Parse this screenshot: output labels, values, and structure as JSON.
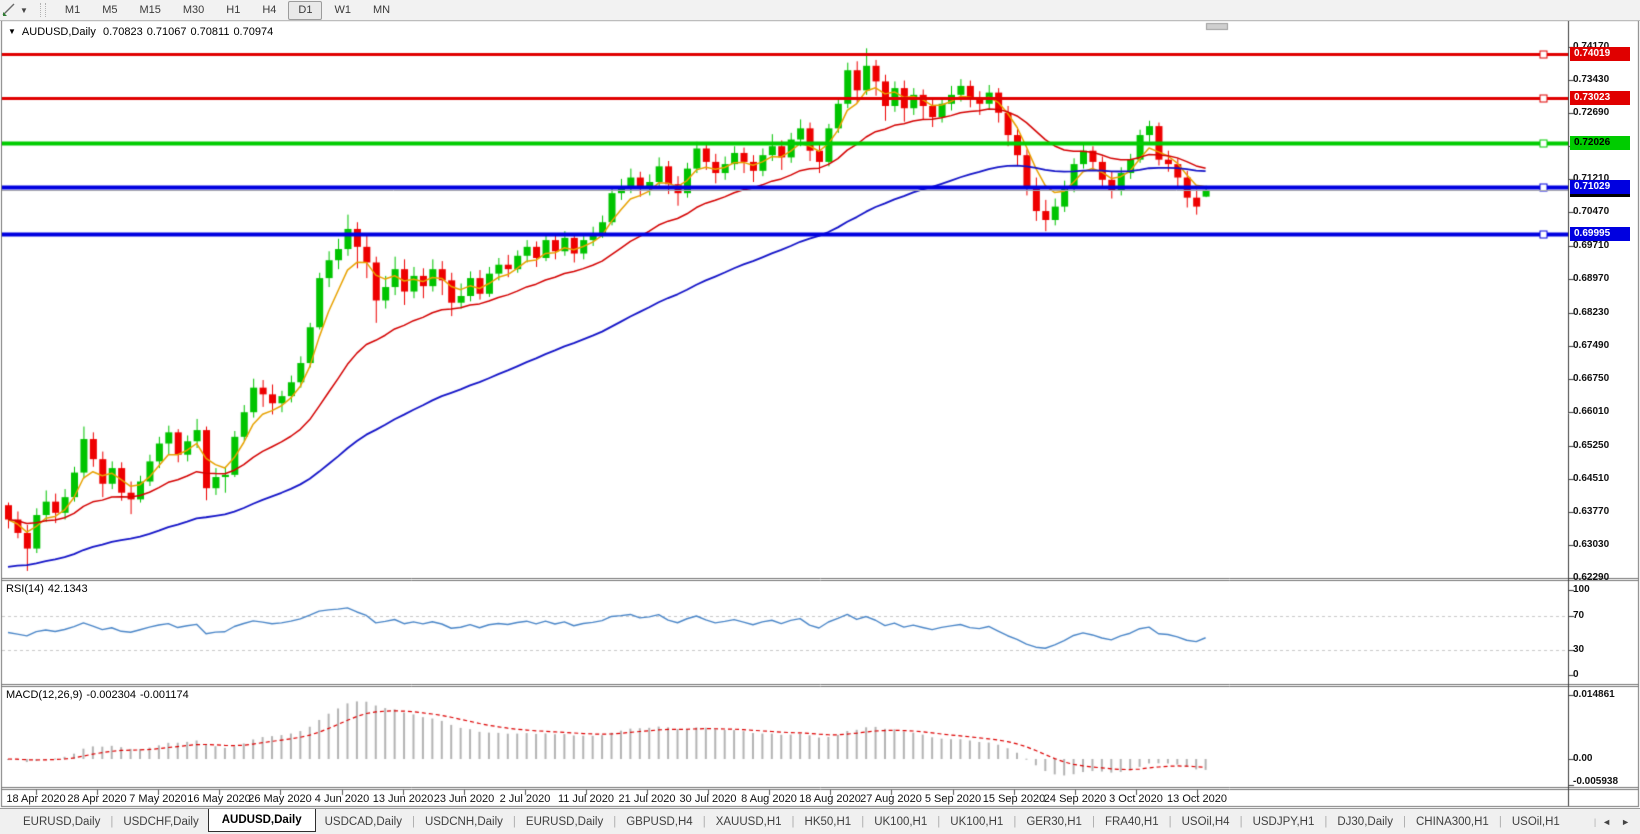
{
  "icons": {
    "title_caret": "▼",
    "dropdown_caret": "▼",
    "scroll_left": "◄",
    "scroll_right": "►"
  },
  "toolbar": {
    "timeframes": [
      "M1",
      "M5",
      "M15",
      "M30",
      "H1",
      "H4",
      "D1",
      "W1",
      "MN"
    ],
    "active": "D1"
  },
  "chart": {
    "symbol_period": "AUDUSD,Daily",
    "open": "0.70823",
    "high": "0.71067",
    "low": "0.70811",
    "close": "0.70974"
  },
  "chart_data": {
    "type": "candlestick",
    "symbol": "AUDUSD",
    "timeframe": "Daily",
    "up_color": "#00c400",
    "down_color": "#ee0000",
    "ohlc_current": {
      "open": 0.70823,
      "high": 0.71067,
      "low": 0.70811,
      "close": 0.70974
    },
    "price_axis": {
      "tick_labels": [
        "0.74170",
        "0.73430",
        "0.72690",
        "0.71950",
        "0.71210",
        "0.70470",
        "0.69710",
        "0.68970",
        "0.68230",
        "0.67490",
        "0.66750",
        "0.66010",
        "0.65250",
        "0.64510",
        "0.63770",
        "0.63030",
        "0.62290"
      ]
    },
    "x_labels": [
      "18 Apr 2020",
      "28 Apr 2020",
      "7 May 2020",
      "16 May 2020",
      "26 May 2020",
      "4 Jun 2020",
      "13 Jun 2020",
      "23 Jun 2020",
      "2 Jul 2020",
      "11 Jul 2020",
      "21 Jul 2020",
      "30 Jul 2020",
      "8 Aug 2020",
      "18 Aug 2020",
      "27 Aug 2020",
      "5 Sep 2020",
      "15 Sep 2020",
      "24 Sep 2020",
      "3 Oct 2020",
      "13 Oct 2020"
    ],
    "levels": [
      {
        "price": 0.74019,
        "label": "0.74019",
        "color": "#e00000",
        "text_color": "#ffffff",
        "width": 3
      },
      {
        "price": 0.73023,
        "label": "0.73023",
        "color": "#e00000",
        "text_color": "#ffffff",
        "width": 3
      },
      {
        "price": 0.72026,
        "label": "0.72026",
        "color": "#00cc00",
        "text_color": "#000000",
        "width": 4
      },
      {
        "price": 0.71029,
        "label": "0.71029",
        "color": "#0000e0",
        "text_color": "#ffffff",
        "width": 4
      },
      {
        "price": 0.69995,
        "label": "0.69995",
        "color": "#0000e0",
        "text_color": "#ffffff",
        "width": 4
      }
    ],
    "bid": {
      "price": 0.70974,
      "label": "0.70974",
      "line_color": "#a8a8a8",
      "badge_color": "#000000",
      "text_color": "#ffffff"
    },
    "moving_averages": [
      {
        "name": "fast",
        "method": "ema",
        "period": 5,
        "color": "#e8a200",
        "width": 1.5
      },
      {
        "name": "medium",
        "method": "ema",
        "period": 20,
        "color": "#d40000",
        "width": 1.5
      },
      {
        "name": "slow",
        "method": "ema",
        "period": 55,
        "color": "#1414c8",
        "width": 1.8,
        "seed": 0.625
      }
    ],
    "rsi": {
      "label": "RSI(14)",
      "value": "42.1343",
      "period": 14,
      "color": "#4a86c8",
      "levels": [
        70,
        30
      ],
      "scale": [
        0,
        100
      ],
      "axis_labels": [
        "100",
        "70",
        "30",
        "0"
      ],
      "axis_values": [
        100,
        70,
        30,
        0
      ]
    },
    "macd": {
      "label": "MACD(12,26,9)",
      "macd_value": "-0.002304",
      "signal_value": "-0.001174",
      "histogram_color": "#b4b4b4",
      "signal_color": "#dd0000",
      "axis_labels": [
        "0.014861",
        "0.00",
        "-0.005938"
      ],
      "axis_values": [
        0.014861,
        0.0,
        -0.005938
      ]
    },
    "candles": [
      [
        0.6392,
        0.6398,
        0.634,
        0.636
      ],
      [
        0.636,
        0.6378,
        0.6318,
        0.633
      ],
      [
        0.633,
        0.6348,
        0.6245,
        0.6295
      ],
      [
        0.6295,
        0.6385,
        0.6285,
        0.637
      ],
      [
        0.637,
        0.6425,
        0.6355,
        0.64
      ],
      [
        0.64,
        0.6418,
        0.6352,
        0.6375
      ],
      [
        0.6375,
        0.6428,
        0.636,
        0.641
      ],
      [
        0.641,
        0.6478,
        0.64,
        0.6465
      ],
      [
        0.6465,
        0.6568,
        0.6452,
        0.654
      ],
      [
        0.654,
        0.6555,
        0.6478,
        0.6495
      ],
      [
        0.6495,
        0.6512,
        0.641,
        0.644
      ],
      [
        0.644,
        0.649,
        0.6428,
        0.6475
      ],
      [
        0.6475,
        0.6488,
        0.6402,
        0.642
      ],
      [
        0.642,
        0.6445,
        0.6372,
        0.6405
      ],
      [
        0.6405,
        0.6458,
        0.6398,
        0.6445
      ],
      [
        0.6445,
        0.6505,
        0.6435,
        0.649
      ],
      [
        0.649,
        0.6545,
        0.6475,
        0.653
      ],
      [
        0.653,
        0.657,
        0.6505,
        0.6555
      ],
      [
        0.6555,
        0.6562,
        0.6488,
        0.6505
      ],
      [
        0.6505,
        0.6548,
        0.649,
        0.6535
      ],
      [
        0.6535,
        0.6585,
        0.652,
        0.656
      ],
      [
        0.656,
        0.6568,
        0.6403,
        0.643
      ],
      [
        0.643,
        0.6475,
        0.6415,
        0.6455
      ],
      [
        0.6455,
        0.6478,
        0.642,
        0.646
      ],
      [
        0.646,
        0.6558,
        0.6455,
        0.6545
      ],
      [
        0.6545,
        0.6616,
        0.6535,
        0.66
      ],
      [
        0.66,
        0.6675,
        0.6588,
        0.6655
      ],
      [
        0.6655,
        0.6672,
        0.6612,
        0.664
      ],
      [
        0.664,
        0.6662,
        0.6595,
        0.662
      ],
      [
        0.662,
        0.6648,
        0.66,
        0.6636
      ],
      [
        0.6636,
        0.6682,
        0.6622,
        0.6667
      ],
      [
        0.6667,
        0.6725,
        0.6655,
        0.671
      ],
      [
        0.671,
        0.68,
        0.67,
        0.679
      ],
      [
        0.679,
        0.6912,
        0.6785,
        0.69
      ],
      [
        0.69,
        0.696,
        0.688,
        0.694
      ],
      [
        0.694,
        0.6988,
        0.692,
        0.6965
      ],
      [
        0.6965,
        0.7042,
        0.695,
        0.701
      ],
      [
        0.701,
        0.7025,
        0.6922,
        0.697
      ],
      [
        0.697,
        0.6998,
        0.69,
        0.6935
      ],
      [
        0.6935,
        0.6948,
        0.68,
        0.685
      ],
      [
        0.685,
        0.6905,
        0.6832,
        0.688
      ],
      [
        0.688,
        0.6948,
        0.6862,
        0.692
      ],
      [
        0.692,
        0.6942,
        0.684,
        0.687
      ],
      [
        0.687,
        0.6925,
        0.6855,
        0.6905
      ],
      [
        0.6905,
        0.6922,
        0.6855,
        0.6882
      ],
      [
        0.6882,
        0.6942,
        0.687,
        0.692
      ],
      [
        0.692,
        0.6938,
        0.6862,
        0.6895
      ],
      [
        0.6895,
        0.6912,
        0.6815,
        0.6845
      ],
      [
        0.6845,
        0.6888,
        0.6832,
        0.686
      ],
      [
        0.686,
        0.6915,
        0.6848,
        0.69
      ],
      [
        0.69,
        0.6918,
        0.6852,
        0.6865
      ],
      [
        0.6865,
        0.6925,
        0.6858,
        0.691
      ],
      [
        0.691,
        0.6945,
        0.6895,
        0.693
      ],
      [
        0.693,
        0.6952,
        0.6902,
        0.692
      ],
      [
        0.692,
        0.6962,
        0.6912,
        0.695
      ],
      [
        0.695,
        0.6985,
        0.6935,
        0.697
      ],
      [
        0.697,
        0.6982,
        0.6925,
        0.6945
      ],
      [
        0.6945,
        0.6998,
        0.6938,
        0.6985
      ],
      [
        0.6985,
        0.6995,
        0.6942,
        0.696
      ],
      [
        0.696,
        0.7005,
        0.695,
        0.699
      ],
      [
        0.699,
        0.6998,
        0.6935,
        0.6955
      ],
      [
        0.6955,
        0.6998,
        0.6942,
        0.6985
      ],
      [
        0.6985,
        0.7015,
        0.6972,
        0.7
      ],
      [
        0.7,
        0.704,
        0.699,
        0.7025
      ],
      [
        0.7025,
        0.7105,
        0.7018,
        0.709
      ],
      [
        0.709,
        0.7122,
        0.7075,
        0.7105
      ],
      [
        0.7105,
        0.7145,
        0.709,
        0.7125
      ],
      [
        0.7125,
        0.7138,
        0.7082,
        0.71
      ],
      [
        0.71,
        0.7132,
        0.7085,
        0.7115
      ],
      [
        0.7115,
        0.717,
        0.7102,
        0.715
      ],
      [
        0.715,
        0.7162,
        0.7088,
        0.711
      ],
      [
        0.711,
        0.7128,
        0.7062,
        0.709
      ],
      [
        0.709,
        0.7158,
        0.708,
        0.7145
      ],
      [
        0.7145,
        0.7205,
        0.7135,
        0.719
      ],
      [
        0.719,
        0.7202,
        0.7142,
        0.716
      ],
      [
        0.716,
        0.7178,
        0.7112,
        0.7135
      ],
      [
        0.7135,
        0.7172,
        0.712,
        0.7155
      ],
      [
        0.7155,
        0.7195,
        0.7142,
        0.718
      ],
      [
        0.718,
        0.7192,
        0.7135,
        0.716
      ],
      [
        0.716,
        0.7175,
        0.7115,
        0.714
      ],
      [
        0.714,
        0.719,
        0.7128,
        0.7175
      ],
      [
        0.7175,
        0.7222,
        0.7162,
        0.7195
      ],
      [
        0.7195,
        0.7208,
        0.7142,
        0.717
      ],
      [
        0.717,
        0.7225,
        0.7158,
        0.721
      ],
      [
        0.721,
        0.7255,
        0.7195,
        0.7235
      ],
      [
        0.7235,
        0.7248,
        0.7162,
        0.7185
      ],
      [
        0.7185,
        0.7202,
        0.7135,
        0.716
      ],
      [
        0.716,
        0.7245,
        0.715,
        0.7235
      ],
      [
        0.7235,
        0.7302,
        0.7225,
        0.729
      ],
      [
        0.729,
        0.7382,
        0.728,
        0.7365
      ],
      [
        0.7365,
        0.7385,
        0.7292,
        0.732
      ],
      [
        0.732,
        0.7414,
        0.731,
        0.7375
      ],
      [
        0.7375,
        0.7388,
        0.7308,
        0.734
      ],
      [
        0.734,
        0.7355,
        0.7252,
        0.7285
      ],
      [
        0.7285,
        0.734,
        0.7272,
        0.7325
      ],
      [
        0.7325,
        0.7342,
        0.725,
        0.728
      ],
      [
        0.728,
        0.7325,
        0.7265,
        0.731
      ],
      [
        0.731,
        0.7322,
        0.7255,
        0.7285
      ],
      [
        0.7285,
        0.7302,
        0.7238,
        0.726
      ],
      [
        0.726,
        0.7305,
        0.7248,
        0.729
      ],
      [
        0.729,
        0.733,
        0.7275,
        0.731
      ],
      [
        0.731,
        0.7345,
        0.7295,
        0.733
      ],
      [
        0.733,
        0.7342,
        0.7282,
        0.73
      ],
      [
        0.73,
        0.7318,
        0.7265,
        0.729
      ],
      [
        0.729,
        0.7332,
        0.7278,
        0.7315
      ],
      [
        0.7315,
        0.7325,
        0.7248,
        0.727
      ],
      [
        0.727,
        0.7285,
        0.7195,
        0.722
      ],
      [
        0.722,
        0.7238,
        0.7152,
        0.7175
      ],
      [
        0.7175,
        0.7188,
        0.7085,
        0.7105
      ],
      [
        0.7105,
        0.7125,
        0.7028,
        0.705
      ],
      [
        0.705,
        0.7075,
        0.7005,
        0.703
      ],
      [
        0.703,
        0.7078,
        0.7018,
        0.706
      ],
      [
        0.706,
        0.7118,
        0.7048,
        0.71
      ],
      [
        0.71,
        0.7168,
        0.7092,
        0.7155
      ],
      [
        0.7155,
        0.7198,
        0.7145,
        0.7185
      ],
      [
        0.7185,
        0.7195,
        0.7142,
        0.716
      ],
      [
        0.716,
        0.7172,
        0.7102,
        0.712
      ],
      [
        0.712,
        0.7138,
        0.7078,
        0.7095
      ],
      [
        0.7095,
        0.7148,
        0.7085,
        0.7135
      ],
      [
        0.7135,
        0.7178,
        0.7122,
        0.7165
      ],
      [
        0.7165,
        0.7232,
        0.7158,
        0.722
      ],
      [
        0.722,
        0.7252,
        0.7205,
        0.724
      ],
      [
        0.724,
        0.7248,
        0.7152,
        0.7165
      ],
      [
        0.7165,
        0.7185,
        0.7138,
        0.7155
      ],
      [
        0.7155,
        0.7168,
        0.7102,
        0.7125
      ],
      [
        0.7125,
        0.714,
        0.7058,
        0.708
      ],
      [
        0.708,
        0.7098,
        0.7042,
        0.706
      ],
      [
        0.70823,
        0.71067,
        0.70811,
        0.70974
      ]
    ]
  },
  "tabs": {
    "items": [
      {
        "label": "EURUSD,Daily",
        "active": false
      },
      {
        "label": "USDCHF,Daily",
        "active": false
      },
      {
        "label": "AUDUSD,Daily",
        "active": true
      },
      {
        "label": "USDCAD,Daily",
        "active": false
      },
      {
        "label": "USDCNH,Daily",
        "active": false
      },
      {
        "label": "EURUSD,Daily",
        "active": false
      },
      {
        "label": "GBPUSD,H4",
        "active": false
      },
      {
        "label": "XAUUSD,H1",
        "active": false
      },
      {
        "label": "HK50,H1",
        "active": false
      },
      {
        "label": "UK100,H1",
        "active": false
      },
      {
        "label": "UK100,H1",
        "active": false
      },
      {
        "label": "GER30,H1",
        "active": false
      },
      {
        "label": "FRA40,H1",
        "active": false
      },
      {
        "label": "USOil,H4",
        "active": false
      },
      {
        "label": "USDJPY,H1",
        "active": false
      },
      {
        "label": "DJ30,Daily",
        "active": false
      },
      {
        "label": "CHINA300,H1",
        "active": false
      },
      {
        "label": "USOil,H1",
        "active": false
      }
    ]
  }
}
